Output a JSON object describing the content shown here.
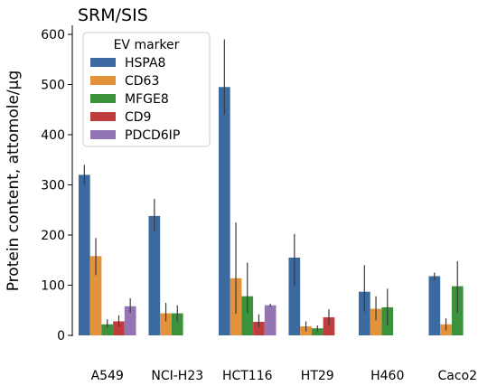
{
  "chart_data": {
    "type": "bar",
    "title": "SRM/SIS",
    "xlabel": "",
    "ylabel": "Protein content, attomole/µg",
    "ylim": [
      0,
      640
    ],
    "yticks": [
      0,
      100,
      200,
      300,
      400,
      500,
      600
    ],
    "grid": false,
    "legend_title": "EV marker",
    "legend_position": "top-left",
    "categories": [
      "A549",
      "NCI-H23",
      "HCT116",
      "HT29",
      "H460",
      "Caco2"
    ],
    "series": [
      {
        "name": "HSPA8",
        "color": "#3b6aa0",
        "values": [
          320,
          238,
          495,
          155,
          87,
          118
        ],
        "err_low": [
          300,
          207,
          440,
          98,
          47,
          110
        ],
        "err_high": [
          340,
          272,
          590,
          202,
          140,
          125
        ]
      },
      {
        "name": "CD63",
        "color": "#e1923b",
        "values": [
          158,
          44,
          114,
          18,
          53,
          22
        ],
        "err_low": [
          120,
          28,
          43,
          8,
          30,
          10
        ],
        "err_high": [
          194,
          65,
          225,
          28,
          78,
          34
        ]
      },
      {
        "name": "MFGE8",
        "color": "#3b923b",
        "values": [
          22,
          44,
          78,
          14,
          56,
          98
        ],
        "err_low": [
          15,
          28,
          45,
          8,
          20,
          45
        ],
        "err_high": [
          32,
          60,
          145,
          20,
          93,
          148
        ]
      },
      {
        "name": "CD9",
        "color": "#c03d3e",
        "values": [
          28,
          null,
          27,
          36,
          null,
          null
        ],
        "err_low": [
          18,
          null,
          16,
          20,
          null,
          null
        ],
        "err_high": [
          40,
          null,
          42,
          52,
          null,
          null
        ]
      },
      {
        "name": "PDCD6IP",
        "color": "#9375b4",
        "values": [
          58,
          null,
          60,
          null,
          null,
          null
        ],
        "err_low": [
          45,
          null,
          57,
          null,
          null,
          null
        ],
        "err_high": [
          74,
          null,
          63,
          null,
          null,
          null
        ]
      }
    ]
  }
}
